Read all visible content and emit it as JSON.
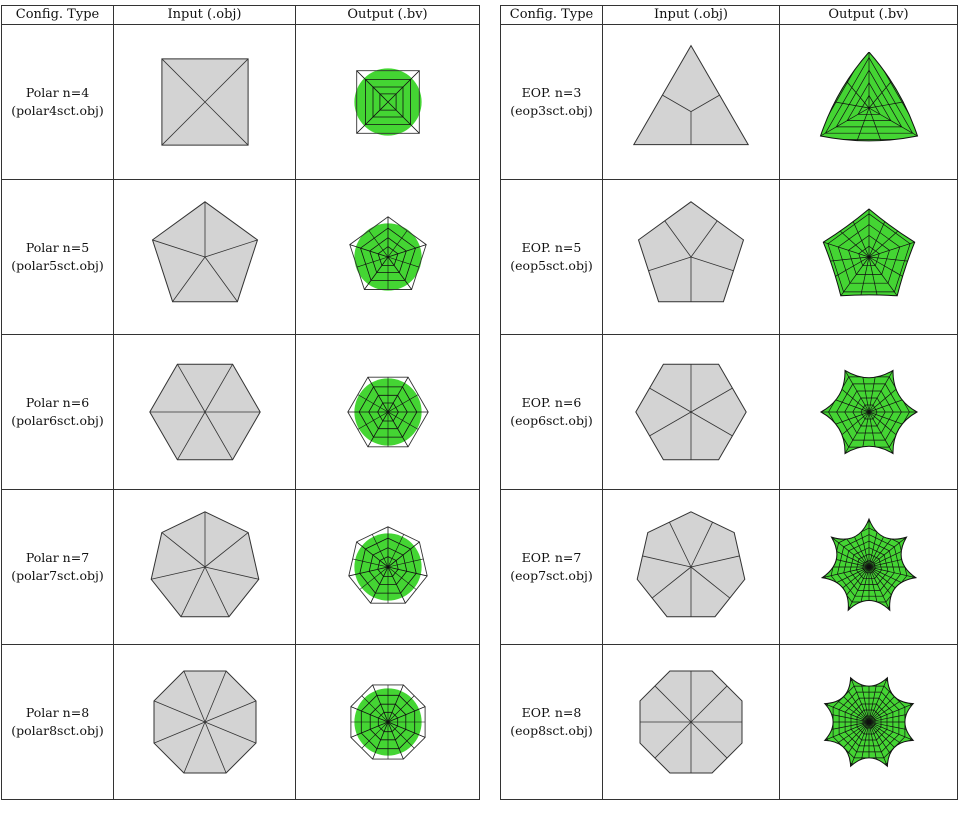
{
  "headers": {
    "config_type": "Config. Type",
    "input": "Input (.obj)",
    "output": "Output (.bv)"
  },
  "colors": {
    "input_fill": "#d3d3d3",
    "output_fill": "#44d533",
    "stroke": "#333333"
  },
  "left_table": {
    "rows": [
      {
        "name": "Polar n=4",
        "file": "(polar4sct.obj)",
        "n": 4,
        "icon": "polar-square"
      },
      {
        "name": "Polar n=5",
        "file": "(polar5sct.obj)",
        "n": 5,
        "icon": "polar-pentagon"
      },
      {
        "name": "Polar n=6",
        "file": "(polar6sct.obj)",
        "n": 6,
        "icon": "polar-hexagon"
      },
      {
        "name": "Polar n=7",
        "file": "(polar7sct.obj)",
        "n": 7,
        "icon": "polar-heptagon"
      },
      {
        "name": "Polar n=8",
        "file": "(polar8sct.obj)",
        "n": 8,
        "icon": "polar-octagon"
      }
    ]
  },
  "right_table": {
    "rows": [
      {
        "name": "EOP. n=3",
        "file": "(eop3sct.obj)",
        "n": 3,
        "icon": "eop-triangle"
      },
      {
        "name": "EOP. n=5",
        "file": "(eop5sct.obj)",
        "n": 5,
        "icon": "eop-pentagon"
      },
      {
        "name": "EOP. n=6",
        "file": "(eop6sct.obj)",
        "n": 6,
        "icon": "eop-hexagon"
      },
      {
        "name": "EOP. n=7",
        "file": "(eop7sct.obj)",
        "n": 7,
        "icon": "eop-heptagon"
      },
      {
        "name": "EOP. n=8",
        "file": "(eop8sct.obj)",
        "n": 8,
        "icon": "eop-octagon"
      }
    ]
  }
}
